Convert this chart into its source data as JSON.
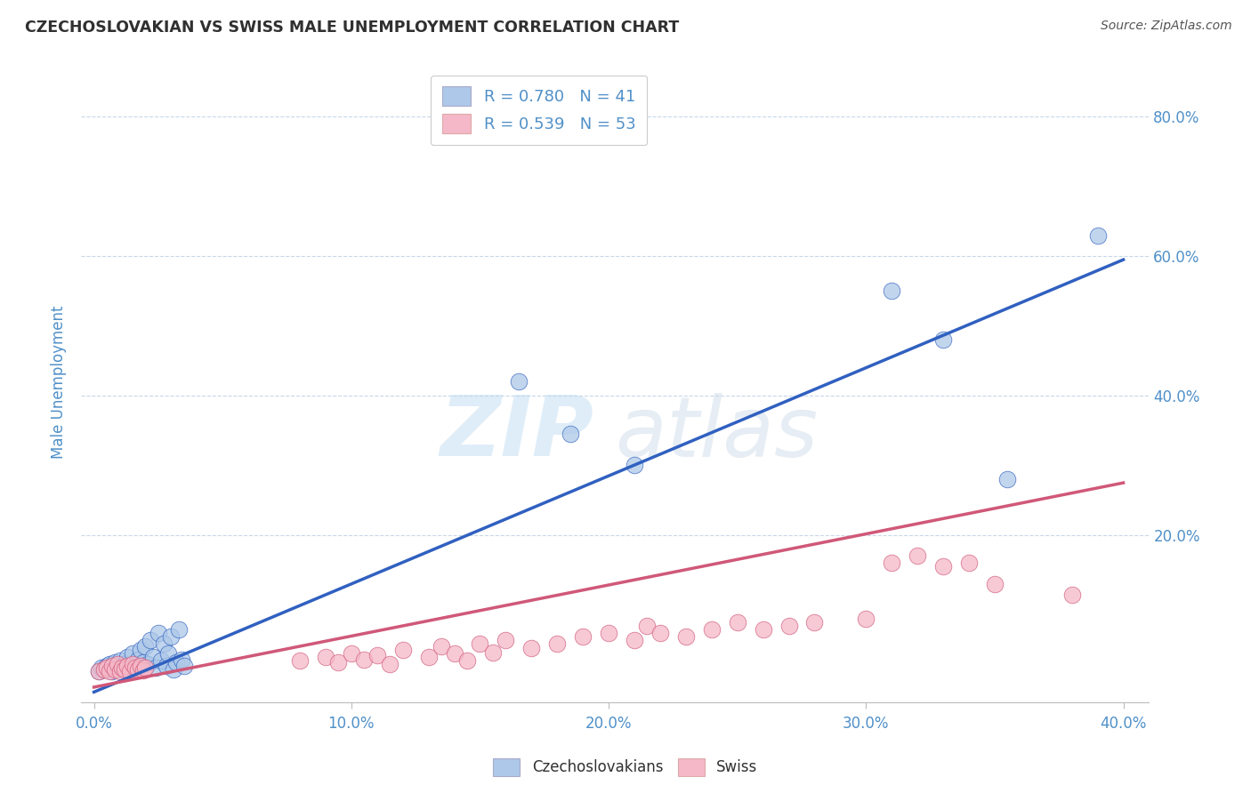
{
  "title": "CZECHOSLOVAKIAN VS SWISS MALE UNEMPLOYMENT CORRELATION CHART",
  "source_text": "Source: ZipAtlas.com",
  "ylabel": "Male Unemployment",
  "x_tick_labels": [
    "0.0%",
    "10.0%",
    "20.0%",
    "30.0%",
    "40.0%"
  ],
  "x_tick_vals": [
    0.0,
    0.1,
    0.2,
    0.3,
    0.4
  ],
  "y_tick_labels_right": [
    "20.0%",
    "40.0%",
    "60.0%",
    "80.0%"
  ],
  "y_tick_vals_right": [
    0.2,
    0.4,
    0.6,
    0.8
  ],
  "xlim": [
    -0.005,
    0.41
  ],
  "ylim": [
    -0.04,
    0.88
  ],
  "legend1_label": "R = 0.780   N = 41",
  "legend2_label": "R = 0.539   N = 53",
  "czech_color": "#adc8e8",
  "swiss_color": "#f5b8c8",
  "blue_line_color": "#3060c0",
  "pink_line_color": "#d05878",
  "title_color": "#303030",
  "tick_color": "#5090c8",
  "background_color": "#ffffff",
  "watermark_zip": "ZIP",
  "watermark_atlas": "atlas",
  "grid_color": "#c8d8e8",
  "czech_scatter": [
    [
      0.002,
      0.005
    ],
    [
      0.003,
      0.01
    ],
    [
      0.004,
      0.008
    ],
    [
      0.005,
      0.012
    ],
    [
      0.006,
      0.015
    ],
    [
      0.007,
      0.005
    ],
    [
      0.008,
      0.018
    ],
    [
      0.009,
      0.008
    ],
    [
      0.01,
      0.02
    ],
    [
      0.011,
      0.01
    ],
    [
      0.012,
      0.015
    ],
    [
      0.013,
      0.025
    ],
    [
      0.014,
      0.008
    ],
    [
      0.015,
      0.03
    ],
    [
      0.016,
      0.012
    ],
    [
      0.017,
      0.022
    ],
    [
      0.018,
      0.035
    ],
    [
      0.019,
      0.018
    ],
    [
      0.02,
      0.04
    ],
    [
      0.021,
      0.015
    ],
    [
      0.022,
      0.05
    ],
    [
      0.023,
      0.025
    ],
    [
      0.024,
      0.01
    ],
    [
      0.025,
      0.06
    ],
    [
      0.026,
      0.02
    ],
    [
      0.027,
      0.045
    ],
    [
      0.028,
      0.012
    ],
    [
      0.029,
      0.03
    ],
    [
      0.03,
      0.055
    ],
    [
      0.031,
      0.008
    ],
    [
      0.032,
      0.018
    ],
    [
      0.033,
      0.065
    ],
    [
      0.034,
      0.022
    ],
    [
      0.035,
      0.012
    ],
    [
      0.165,
      0.42
    ],
    [
      0.185,
      0.345
    ],
    [
      0.21,
      0.3
    ],
    [
      0.31,
      0.55
    ],
    [
      0.33,
      0.48
    ],
    [
      0.355,
      0.28
    ],
    [
      0.39,
      0.63
    ]
  ],
  "swiss_scatter": [
    [
      0.002,
      0.005
    ],
    [
      0.004,
      0.008
    ],
    [
      0.005,
      0.01
    ],
    [
      0.006,
      0.005
    ],
    [
      0.007,
      0.012
    ],
    [
      0.008,
      0.008
    ],
    [
      0.009,
      0.015
    ],
    [
      0.01,
      0.005
    ],
    [
      0.011,
      0.01
    ],
    [
      0.012,
      0.008
    ],
    [
      0.013,
      0.012
    ],
    [
      0.014,
      0.005
    ],
    [
      0.015,
      0.015
    ],
    [
      0.016,
      0.01
    ],
    [
      0.017,
      0.008
    ],
    [
      0.018,
      0.012
    ],
    [
      0.019,
      0.006
    ],
    [
      0.02,
      0.01
    ],
    [
      0.08,
      0.02
    ],
    [
      0.09,
      0.025
    ],
    [
      0.095,
      0.018
    ],
    [
      0.1,
      0.03
    ],
    [
      0.105,
      0.022
    ],
    [
      0.11,
      0.028
    ],
    [
      0.115,
      0.015
    ],
    [
      0.12,
      0.035
    ],
    [
      0.13,
      0.025
    ],
    [
      0.135,
      0.04
    ],
    [
      0.14,
      0.03
    ],
    [
      0.145,
      0.02
    ],
    [
      0.15,
      0.045
    ],
    [
      0.155,
      0.032
    ],
    [
      0.16,
      0.05
    ],
    [
      0.17,
      0.038
    ],
    [
      0.18,
      0.045
    ],
    [
      0.19,
      0.055
    ],
    [
      0.2,
      0.06
    ],
    [
      0.21,
      0.05
    ],
    [
      0.215,
      0.07
    ],
    [
      0.22,
      0.06
    ],
    [
      0.23,
      0.055
    ],
    [
      0.24,
      0.065
    ],
    [
      0.25,
      0.075
    ],
    [
      0.26,
      0.065
    ],
    [
      0.27,
      0.07
    ],
    [
      0.28,
      0.075
    ],
    [
      0.3,
      0.08
    ],
    [
      0.31,
      0.16
    ],
    [
      0.32,
      0.17
    ],
    [
      0.33,
      0.155
    ],
    [
      0.34,
      0.16
    ],
    [
      0.35,
      0.13
    ],
    [
      0.38,
      0.115
    ]
  ],
  "czech_line": [
    [
      0.0,
      -0.025
    ],
    [
      0.4,
      0.595
    ]
  ],
  "swiss_line": [
    [
      0.0,
      -0.018
    ],
    [
      0.4,
      0.275
    ]
  ]
}
